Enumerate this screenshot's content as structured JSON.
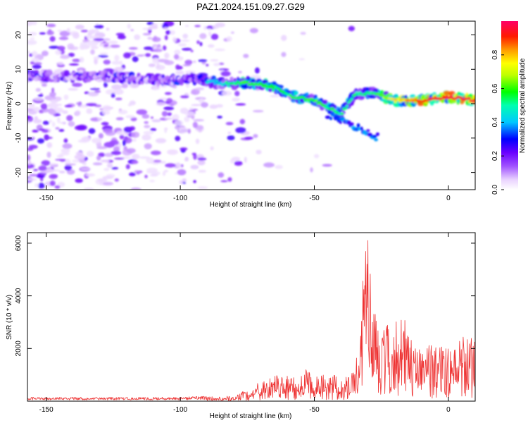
{
  "figure": {
    "title": "PAZ1.2024.151.09.27.G29"
  },
  "chart_data": [
    {
      "type": "heatmap",
      "xlabel": "Height of straight line (km)",
      "ylabel": "Frequency (Hz)",
      "xlim": [
        -157,
        10
      ],
      "ylim": [
        -25,
        24
      ],
      "xticks": [
        -150,
        -100,
        -50,
        0
      ],
      "yticks": [
        -20,
        -10,
        0,
        10,
        20
      ],
      "colorbar": {
        "label": "Normalized spectral amplitude",
        "range": [
          0,
          1
        ],
        "ticks": [
          "0.0",
          "0.2",
          "0.4",
          "0.6",
          "0.8"
        ],
        "colormap": "hsv-rainbow"
      },
      "ridge": {
        "x": [
          -155,
          -140,
          -125,
          -110,
          -95,
          -85,
          -75,
          -65,
          -58,
          -50,
          -45,
          -40,
          -35,
          -28,
          -20,
          -10,
          0,
          10
        ],
        "freq": [
          8,
          8,
          8,
          7,
          7,
          6,
          6,
          5,
          2,
          1,
          -1,
          -3,
          3,
          3,
          1,
          1,
          2,
          1
        ],
        "amplitude": [
          0.3,
          0.3,
          0.3,
          0.3,
          0.35,
          0.4,
          0.55,
          0.5,
          0.5,
          0.55,
          0.5,
          0.45,
          0.45,
          0.5,
          0.7,
          0.85,
          0.9,
          0.9
        ]
      },
      "branch": {
        "x": [
          -45,
          -40,
          -35,
          -30,
          -26
        ],
        "freq": [
          -3,
          -5,
          -7,
          -8,
          -10
        ]
      }
    },
    {
      "type": "line",
      "xlabel": "Height of straight line (km)",
      "ylabel": "SNR (10 * v/v)",
      "xlim": [
        -157,
        10
      ],
      "ylim": [
        0,
        6400
      ],
      "xticks": [
        -150,
        -100,
        -50,
        0
      ],
      "yticks": [
        2000,
        4000,
        6000
      ],
      "color": "#ee3333",
      "envelope": {
        "x": [
          -157,
          -100,
          -80,
          -72,
          -65,
          -58,
          -52,
          -45,
          -40,
          -35,
          -33,
          -31,
          -30,
          -28,
          -26,
          -24,
          -22,
          -20,
          -17,
          -15,
          -12,
          -10,
          -5,
          0,
          5,
          10
        ],
        "y": [
          120,
          120,
          200,
          600,
          1000,
          900,
          1200,
          900,
          1000,
          1100,
          2500,
          6200,
          6300,
          3500,
          3200,
          2600,
          3000,
          2800,
          3200,
          2700,
          2200,
          2100,
          2000,
          2100,
          2300,
          2500
        ]
      }
    }
  ]
}
